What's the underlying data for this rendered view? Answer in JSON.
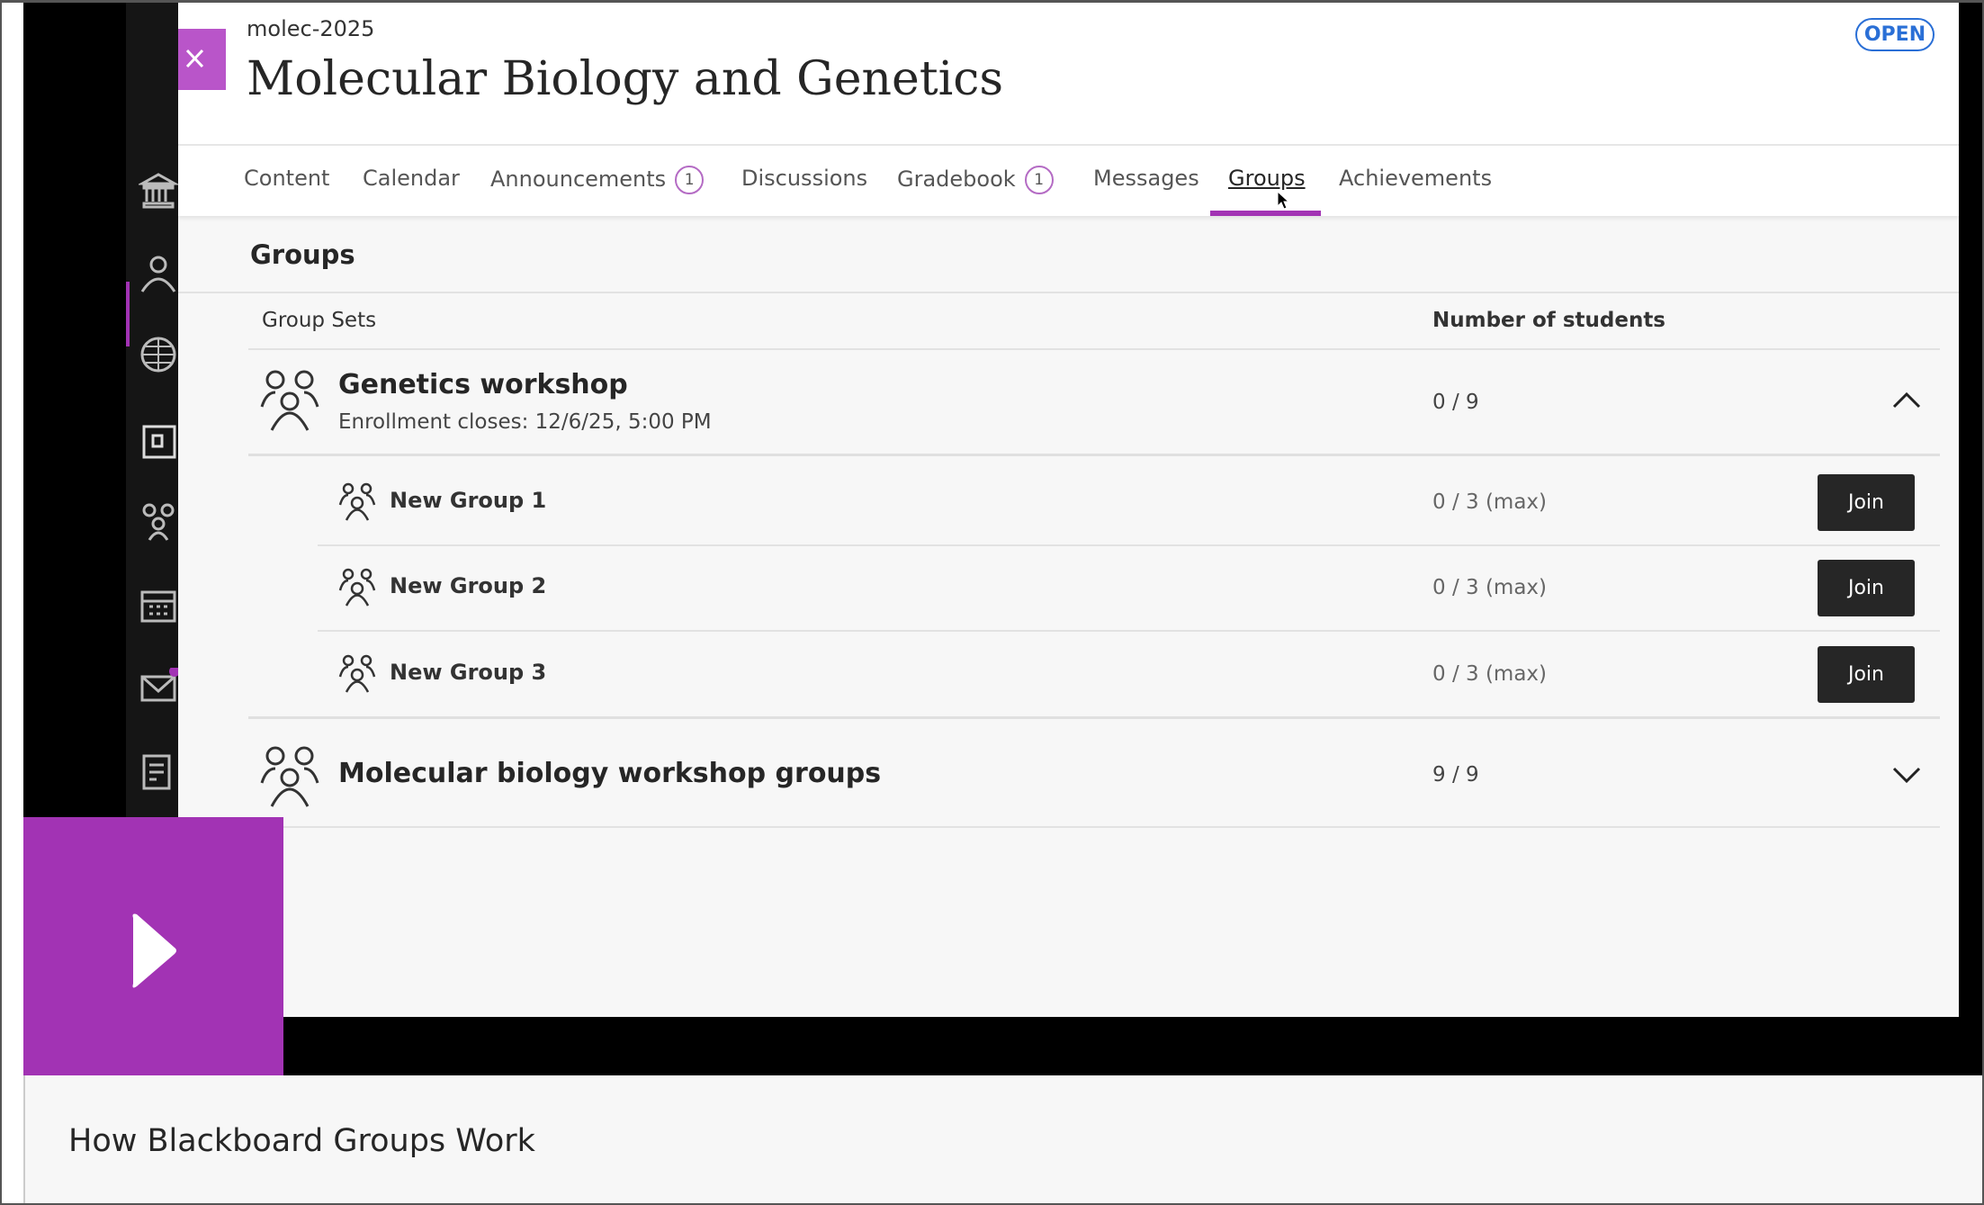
{
  "course": {
    "code": "molec-2025",
    "title": "Molecular Biology and Genetics",
    "status": "OPEN"
  },
  "tabs": [
    {
      "label": "Content"
    },
    {
      "label": "Calendar"
    },
    {
      "label": "Announcements",
      "badge": "1"
    },
    {
      "label": "Discussions"
    },
    {
      "label": "Gradebook",
      "badge": "1"
    },
    {
      "label": "Messages"
    },
    {
      "label": "Groups",
      "active": true
    },
    {
      "label": "Achievements"
    }
  ],
  "page": {
    "heading": "Groups",
    "col_sets": "Group Sets",
    "col_students": "Number of students"
  },
  "group_sets": [
    {
      "name": "Genetics workshop",
      "enrollment": "Enrollment closes: 12/6/25, 5:00 PM",
      "count": "0 / 9",
      "expanded": true,
      "groups": [
        {
          "name": "New Group 1",
          "count": "0 / 3 (max)",
          "action": "Join"
        },
        {
          "name": "New Group 2",
          "count": "0 / 3 (max)",
          "action": "Join"
        },
        {
          "name": "New Group 3",
          "count": "0 / 3 (max)",
          "action": "Join"
        }
      ]
    },
    {
      "name": "Molecular biology workshop groups",
      "count": "9 / 9",
      "expanded": false
    }
  ],
  "video": {
    "caption": "How Blackboard Groups Work"
  },
  "colors": {
    "accent": "#a233b4",
    "open_badge": "#2a6fd6",
    "join_button": "#262626"
  }
}
